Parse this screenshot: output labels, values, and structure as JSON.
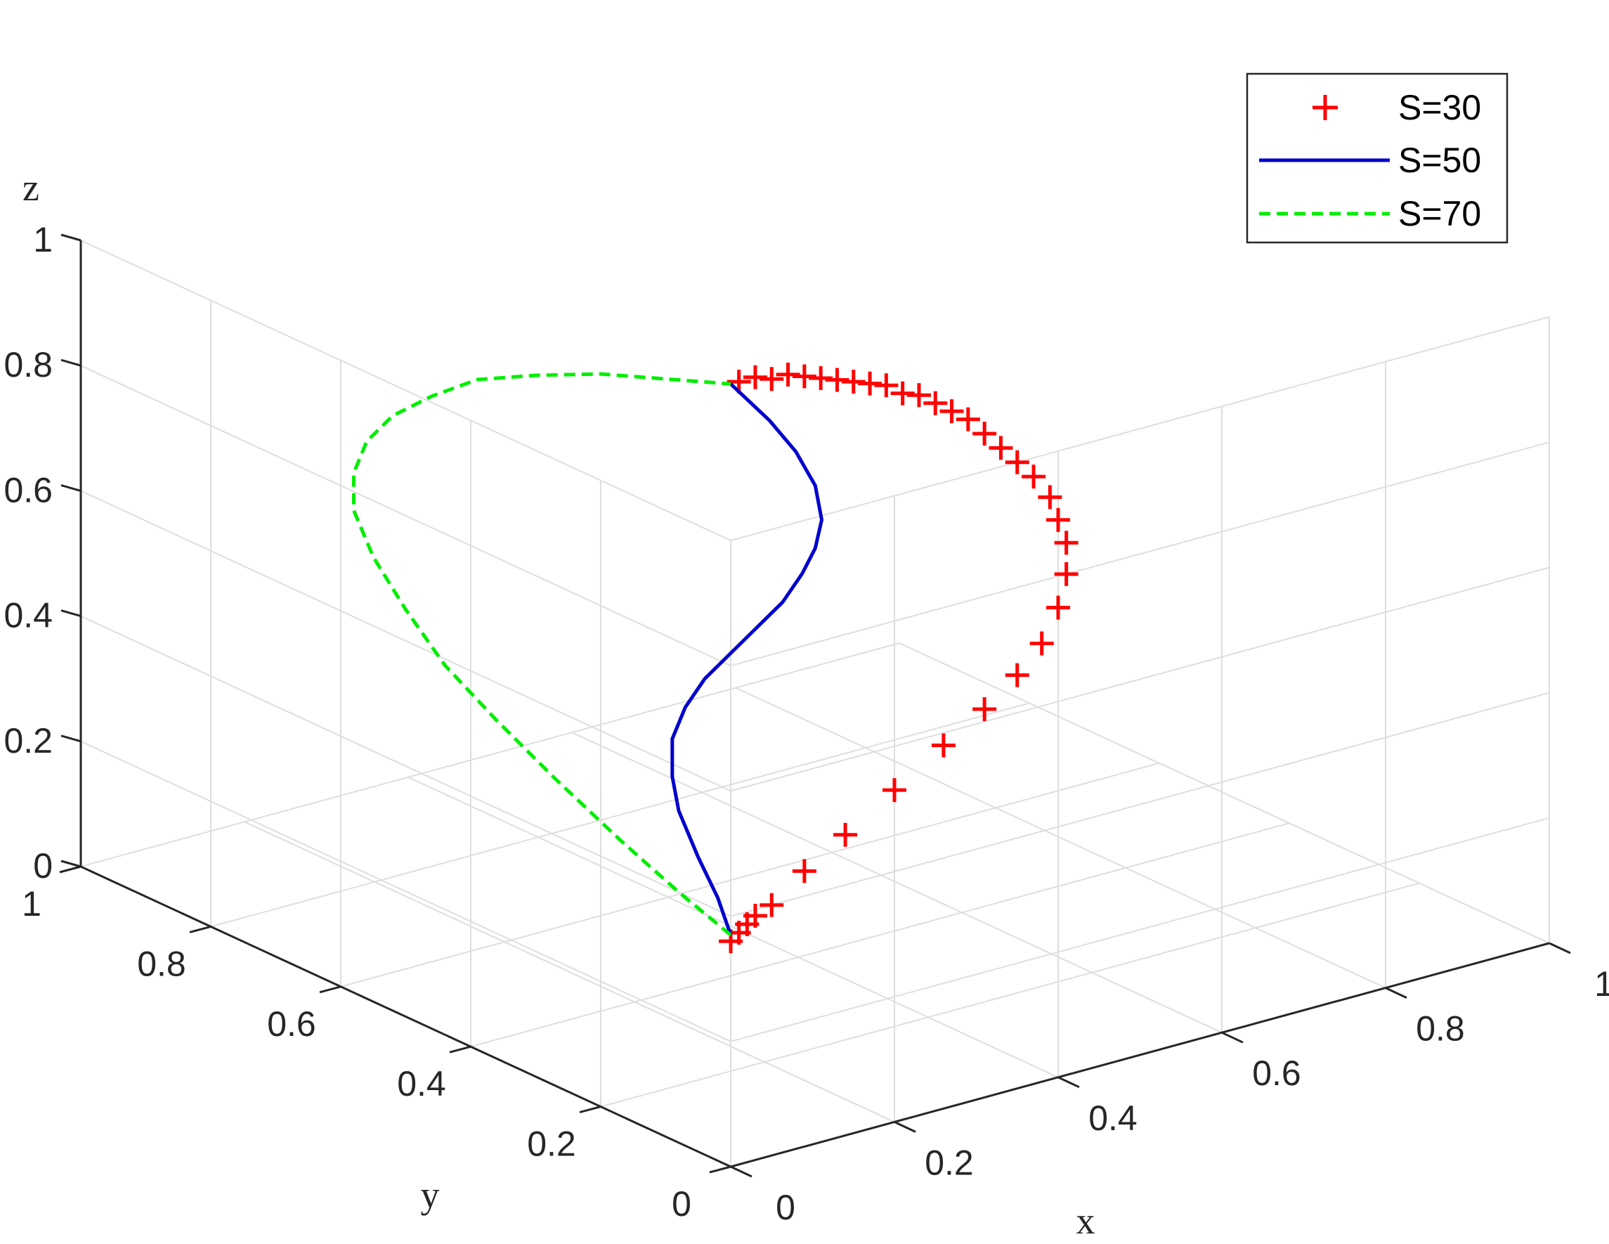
{
  "chart_data": {
    "type": "line3d",
    "title": "",
    "xlabel": "x",
    "ylabel": "y",
    "zlabel": "z",
    "xlim": [
      0,
      1
    ],
    "ylim": [
      0,
      1
    ],
    "zlim": [
      0,
      1
    ],
    "x_ticks": [
      "0",
      "0.2",
      "0.4",
      "0.6",
      "0.8",
      "1"
    ],
    "y_ticks": [
      "0",
      "0.2",
      "0.4",
      "0.6",
      "0.8",
      "1"
    ],
    "z_ticks": [
      "0",
      "0.2",
      "0.4",
      "0.6",
      "0.8",
      "1"
    ],
    "grid": true,
    "legend_position": "top-right",
    "series": [
      {
        "name": "S=30",
        "style": "markers-plus",
        "color": "#ff0000",
        "points": [
          [
            0.0,
            0.0,
            0.36
          ],
          [
            0.01,
            0.0,
            0.37
          ],
          [
            0.02,
            0.0,
            0.38
          ],
          [
            0.03,
            0.0,
            0.39
          ],
          [
            0.05,
            0.0,
            0.4
          ],
          [
            0.09,
            0.0,
            0.44
          ],
          [
            0.14,
            0.0,
            0.48
          ],
          [
            0.2,
            0.0,
            0.53
          ],
          [
            0.26,
            0.0,
            0.58
          ],
          [
            0.31,
            0.0,
            0.62
          ],
          [
            0.35,
            0.0,
            0.66
          ],
          [
            0.38,
            0.0,
            0.7
          ],
          [
            0.4,
            0.0,
            0.75
          ],
          [
            0.41,
            0.0,
            0.8
          ],
          [
            0.41,
            0.0,
            0.85
          ],
          [
            0.4,
            0.0,
            0.89
          ],
          [
            0.39,
            0.0,
            0.93
          ],
          [
            0.37,
            0.0,
            0.97
          ],
          [
            0.35,
            0.0,
            1.0
          ],
          [
            0.33,
            0.0,
            1.03
          ],
          [
            0.31,
            0.0,
            1.06
          ],
          [
            0.29,
            0.0,
            1.09
          ],
          [
            0.27,
            0.0,
            1.11
          ],
          [
            0.25,
            0.0,
            1.13
          ],
          [
            0.23,
            0.0,
            1.15
          ],
          [
            0.21,
            0.0,
            1.16
          ],
          [
            0.19,
            0.0,
            1.18
          ],
          [
            0.17,
            0.0,
            1.19
          ],
          [
            0.15,
            0.0,
            1.2
          ],
          [
            0.13,
            0.0,
            1.21
          ],
          [
            0.11,
            0.0,
            1.22
          ],
          [
            0.09,
            0.0,
            1.23
          ],
          [
            0.07,
            0.0,
            1.24
          ],
          [
            0.05,
            0.0,
            1.24
          ],
          [
            0.03,
            0.0,
            1.25
          ],
          [
            0.01,
            0.0,
            1.25
          ]
        ]
      },
      {
        "name": "S=50",
        "style": "solid",
        "color": "#0000cd",
        "points": [
          [
            0.0,
            0.0,
            0.37
          ],
          [
            0.0,
            0.02,
            0.42
          ],
          [
            0.0,
            0.05,
            0.47
          ],
          [
            0.0,
            0.08,
            0.53
          ],
          [
            0.0,
            0.09,
            0.58
          ],
          [
            0.0,
            0.09,
            0.64
          ],
          [
            0.0,
            0.07,
            0.7
          ],
          [
            0.0,
            0.04,
            0.76
          ],
          [
            0.0,
            0.0,
            0.82
          ],
          [
            0.0,
            -0.04,
            0.88
          ],
          [
            0.0,
            -0.08,
            0.94
          ],
          [
            0.0,
            -0.11,
            1.0
          ],
          [
            0.0,
            -0.13,
            1.05
          ],
          [
            0.0,
            -0.14,
            1.1
          ],
          [
            0.0,
            -0.13,
            1.15
          ],
          [
            0.0,
            -0.1,
            1.19
          ],
          [
            0.0,
            -0.06,
            1.22
          ],
          [
            0.0,
            0.0,
            1.25
          ]
        ]
      },
      {
        "name": "S=70",
        "style": "dashed",
        "color": "#00ee00",
        "points": [
          [
            0.0,
            0.0,
            0.37
          ],
          [
            0.0,
            0.08,
            0.4
          ],
          [
            0.0,
            0.17,
            0.44
          ],
          [
            0.0,
            0.27,
            0.49
          ],
          [
            0.0,
            0.36,
            0.54
          ],
          [
            0.0,
            0.44,
            0.59
          ],
          [
            0.0,
            0.5,
            0.65
          ],
          [
            0.0,
            0.55,
            0.71
          ],
          [
            0.0,
            0.58,
            0.77
          ],
          [
            0.0,
            0.58,
            0.83
          ],
          [
            0.0,
            0.56,
            0.89
          ],
          [
            0.0,
            0.52,
            0.95
          ],
          [
            0.0,
            0.46,
            1.01
          ],
          [
            0.0,
            0.39,
            1.07
          ],
          [
            0.0,
            0.3,
            1.12
          ],
          [
            0.0,
            0.2,
            1.17
          ],
          [
            0.0,
            0.1,
            1.21
          ],
          [
            0.0,
            0.0,
            1.25
          ]
        ]
      }
    ]
  },
  "colors": {
    "grid": "#dedede",
    "axis": "#262626",
    "s30": "#ff0000",
    "s50": "#0000cd",
    "s70": "#00ee00"
  }
}
